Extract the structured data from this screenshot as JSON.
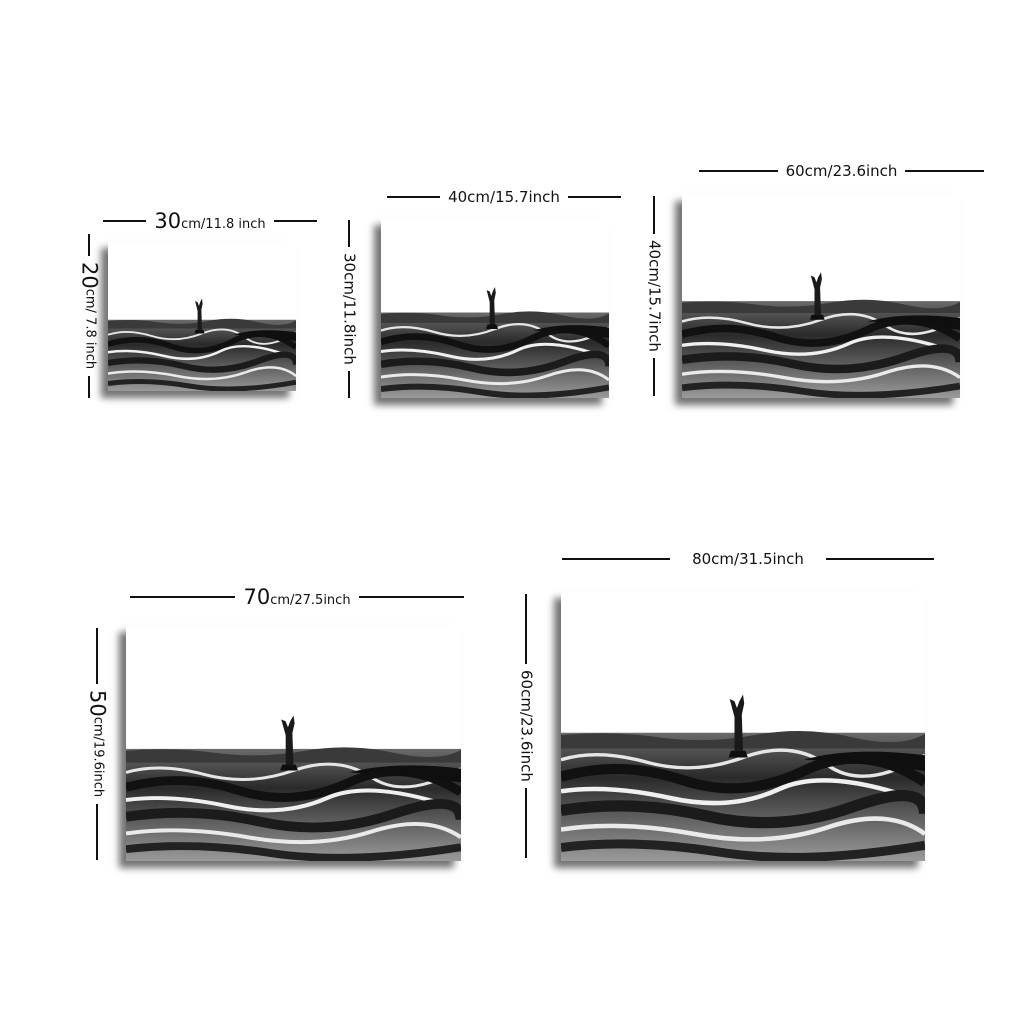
{
  "products": [
    {
      "width_label_num": "30",
      "width_label_rest": "cm/11.8 inch",
      "height_label_num": "20",
      "height_label_rest": "cm/ 7.8 inch"
    },
    {
      "width_label": "40cm/15.7inch",
      "height_label": "30cm/11.8inch"
    },
    {
      "width_label": "60cm/23.6inch",
      "height_label": "40cm/15.7inch"
    },
    {
      "width_label_num": "70",
      "width_label_rest": "cm/27.5inch",
      "height_label_num": "50",
      "height_label_rest": "cm/19.6inch"
    },
    {
      "width_label": "80cm/31.5inch",
      "height_label": "60cm/23.6inch"
    }
  ],
  "colors": {
    "sky": "#ffffff",
    "water_dark": "#1a1a1a",
    "water_mid": "#5a5a5a",
    "water_light": "#cfcfcf",
    "line": "#111111"
  }
}
